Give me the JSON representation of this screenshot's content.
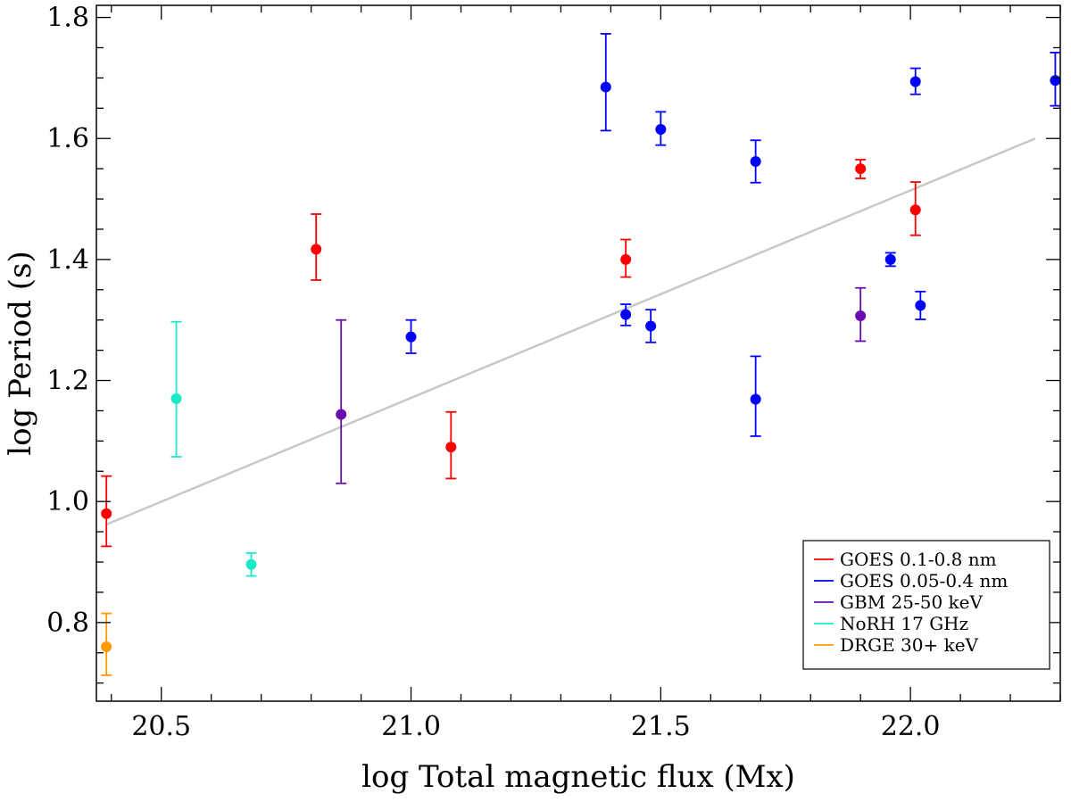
{
  "chart_data": {
    "type": "scatter",
    "xlabel": "log Total magnetic flux (Mx)",
    "ylabel": "log Period (s)",
    "xlim": [
      20.37,
      22.3
    ],
    "ylim": [
      0.67,
      1.82
    ],
    "xticks": [
      20.5,
      21.0,
      21.5,
      22.0
    ],
    "xtick_labels": [
      "20.5",
      "21.0",
      "21.5",
      "22.0"
    ],
    "yticks": [
      0.8,
      1.0,
      1.2,
      1.4,
      1.6,
      1.8
    ],
    "ytick_labels": [
      "0.8",
      "1.0",
      "1.2",
      "1.4",
      "1.6",
      "1.8"
    ],
    "legend_position": "bottom-right",
    "fit_line": {
      "x": [
        20.39,
        22.25
      ],
      "y": [
        0.962,
        1.6
      ],
      "color": "#c8c8c8"
    },
    "series": [
      {
        "name": "GOES 0.1-0.8 nm",
        "color": "#ff0000",
        "points": [
          {
            "x": 20.39,
            "y": 0.98,
            "lo": 0.926,
            "hi": 1.042
          },
          {
            "x": 20.81,
            "y": 1.417,
            "lo": 1.366,
            "hi": 1.475
          },
          {
            "x": 21.08,
            "y": 1.09,
            "lo": 1.038,
            "hi": 1.148
          },
          {
            "x": 21.43,
            "y": 1.4,
            "lo": 1.371,
            "hi": 1.433
          },
          {
            "x": 21.9,
            "y": 1.55,
            "lo": 1.534,
            "hi": 1.565
          },
          {
            "x": 22.01,
            "y": 1.482,
            "lo": 1.44,
            "hi": 1.528
          }
        ]
      },
      {
        "name": "GOES 0.05-0.4 nm",
        "color": "#0000ff",
        "points": [
          {
            "x": 21.0,
            "y": 1.272,
            "lo": 1.245,
            "hi": 1.3
          },
          {
            "x": 21.39,
            "y": 1.685,
            "lo": 1.613,
            "hi": 1.773
          },
          {
            "x": 21.43,
            "y": 1.309,
            "lo": 1.291,
            "hi": 1.326
          },
          {
            "x": 21.48,
            "y": 1.29,
            "lo": 1.263,
            "hi": 1.317
          },
          {
            "x": 21.5,
            "y": 1.615,
            "lo": 1.589,
            "hi": 1.644
          },
          {
            "x": 21.69,
            "y": 1.562,
            "lo": 1.527,
            "hi": 1.597
          },
          {
            "x": 21.69,
            "y": 1.169,
            "lo": 1.108,
            "hi": 1.24
          },
          {
            "x": 21.96,
            "y": 1.4,
            "lo": 1.389,
            "hi": 1.411
          },
          {
            "x": 22.01,
            "y": 1.694,
            "lo": 1.673,
            "hi": 1.716
          },
          {
            "x": 22.02,
            "y": 1.324,
            "lo": 1.301,
            "hi": 1.347
          },
          {
            "x": 22.29,
            "y": 1.696,
            "lo": 1.654,
            "hi": 1.742
          }
        ]
      },
      {
        "name": "GBM 25-50 keV",
        "color": "#6a0dad",
        "points": [
          {
            "x": 20.86,
            "y": 1.144,
            "lo": 1.03,
            "hi": 1.3
          },
          {
            "x": 21.9,
            "y": 1.307,
            "lo": 1.265,
            "hi": 1.353
          }
        ]
      },
      {
        "name": "NoRH 17 GHz",
        "color": "#1de9c8",
        "points": [
          {
            "x": 20.53,
            "y": 1.17,
            "lo": 1.074,
            "hi": 1.297
          },
          {
            "x": 20.68,
            "y": 0.896,
            "lo": 0.877,
            "hi": 0.915
          }
        ]
      },
      {
        "name": "DRGE 30+ keV",
        "color": "#ff9900",
        "points": [
          {
            "x": 20.39,
            "y": 0.76,
            "lo": 0.713,
            "hi": 0.815
          }
        ]
      }
    ]
  }
}
